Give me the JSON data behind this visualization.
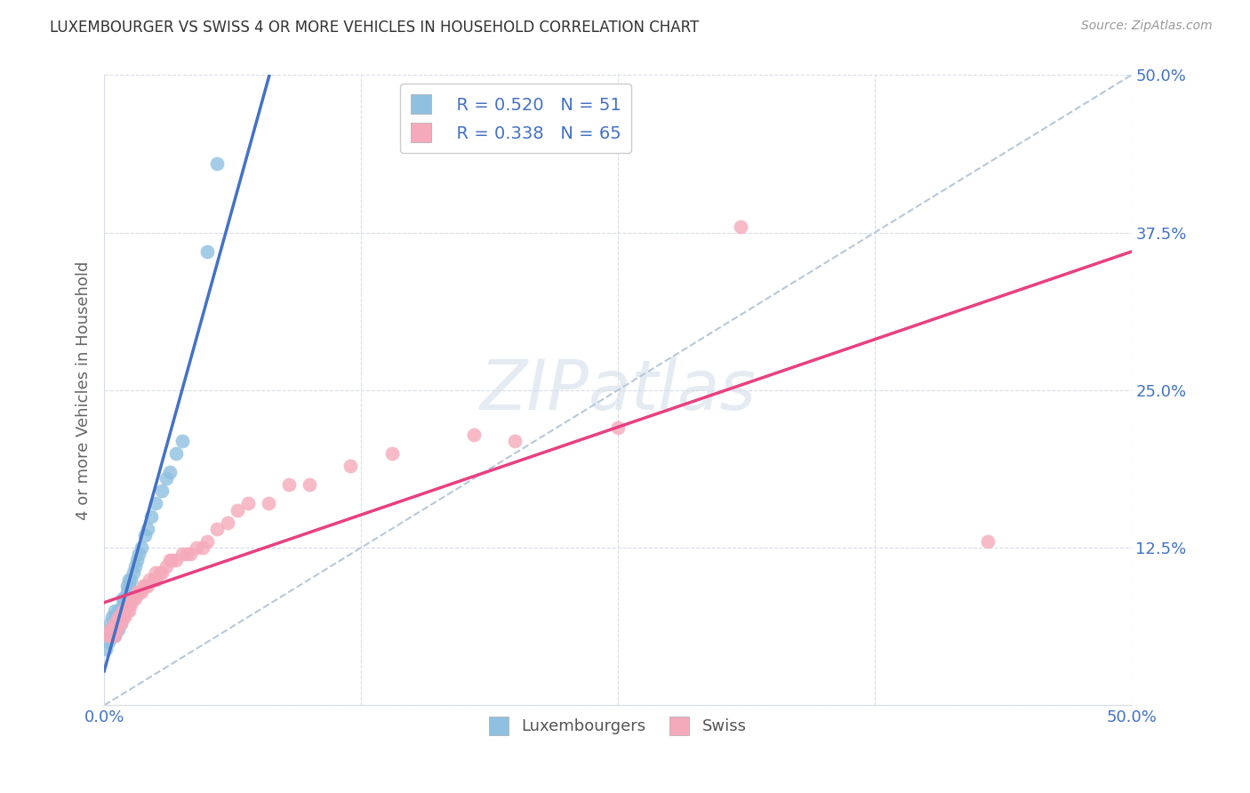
{
  "title": "LUXEMBOURGER VS SWISS 4 OR MORE VEHICLES IN HOUSEHOLD CORRELATION CHART",
  "source": "Source: ZipAtlas.com",
  "ylabel": "4 or more Vehicles in Household",
  "xlim": [
    0.0,
    0.5
  ],
  "ylim": [
    0.0,
    0.5
  ],
  "yticks": [
    0.0,
    0.125,
    0.25,
    0.375,
    0.5
  ],
  "ytick_labels": [
    "",
    "12.5%",
    "25.0%",
    "37.5%",
    "50.0%"
  ],
  "xticks": [
    0.0,
    0.125,
    0.25,
    0.375,
    0.5
  ],
  "xtick_labels": [
    "0.0%",
    "",
    "",
    "",
    "50.0%"
  ],
  "legend_lux_r": "R = 0.520",
  "legend_lux_n": "N = 51",
  "legend_swiss_r": "R = 0.338",
  "legend_swiss_n": "N = 65",
  "lux_color": "#8FC0E0",
  "swiss_color": "#F5AABB",
  "lux_line_color": "#4472C4",
  "swiss_line_color": "#E84080",
  "diagonal_color": "#B8C8D8",
  "background": "#FFFFFF",
  "grid_color": "#D8DCE8",
  "lux_x": [
    0.001,
    0.002,
    0.003,
    0.003,
    0.004,
    0.004,
    0.004,
    0.005,
    0.005,
    0.005,
    0.005,
    0.005,
    0.006,
    0.006,
    0.006,
    0.006,
    0.007,
    0.007,
    0.007,
    0.007,
    0.007,
    0.008,
    0.008,
    0.008,
    0.008,
    0.009,
    0.009,
    0.009,
    0.01,
    0.01,
    0.011,
    0.011,
    0.012,
    0.012,
    0.013,
    0.014,
    0.015,
    0.016,
    0.017,
    0.018,
    0.02,
    0.021,
    0.023,
    0.025,
    0.028,
    0.03,
    0.032,
    0.035,
    0.038,
    0.05,
    0.055
  ],
  "lux_y": [
    0.045,
    0.05,
    0.06,
    0.065,
    0.055,
    0.06,
    0.07,
    0.055,
    0.06,
    0.065,
    0.07,
    0.075,
    0.06,
    0.065,
    0.065,
    0.07,
    0.06,
    0.065,
    0.065,
    0.07,
    0.075,
    0.065,
    0.07,
    0.07,
    0.075,
    0.075,
    0.08,
    0.085,
    0.08,
    0.085,
    0.09,
    0.095,
    0.095,
    0.1,
    0.1,
    0.105,
    0.11,
    0.115,
    0.12,
    0.125,
    0.135,
    0.14,
    0.15,
    0.16,
    0.17,
    0.18,
    0.185,
    0.2,
    0.21,
    0.36,
    0.43
  ],
  "swiss_x": [
    0.002,
    0.003,
    0.003,
    0.004,
    0.004,
    0.004,
    0.005,
    0.005,
    0.005,
    0.006,
    0.006,
    0.006,
    0.007,
    0.007,
    0.007,
    0.008,
    0.008,
    0.008,
    0.009,
    0.009,
    0.01,
    0.01,
    0.011,
    0.011,
    0.012,
    0.012,
    0.013,
    0.014,
    0.015,
    0.016,
    0.017,
    0.018,
    0.019,
    0.02,
    0.021,
    0.022,
    0.024,
    0.025,
    0.025,
    0.027,
    0.028,
    0.03,
    0.032,
    0.033,
    0.035,
    0.038,
    0.04,
    0.042,
    0.045,
    0.048,
    0.05,
    0.055,
    0.06,
    0.065,
    0.07,
    0.08,
    0.09,
    0.1,
    0.12,
    0.14,
    0.18,
    0.2,
    0.25,
    0.31,
    0.43
  ],
  "swiss_y": [
    0.055,
    0.055,
    0.06,
    0.055,
    0.06,
    0.06,
    0.055,
    0.06,
    0.065,
    0.06,
    0.06,
    0.065,
    0.065,
    0.065,
    0.07,
    0.065,
    0.07,
    0.07,
    0.07,
    0.075,
    0.07,
    0.075,
    0.075,
    0.08,
    0.075,
    0.08,
    0.08,
    0.085,
    0.085,
    0.09,
    0.09,
    0.09,
    0.095,
    0.095,
    0.095,
    0.1,
    0.1,
    0.1,
    0.105,
    0.105,
    0.105,
    0.11,
    0.115,
    0.115,
    0.115,
    0.12,
    0.12,
    0.12,
    0.125,
    0.125,
    0.13,
    0.14,
    0.145,
    0.155,
    0.16,
    0.16,
    0.175,
    0.175,
    0.19,
    0.2,
    0.215,
    0.21,
    0.22,
    0.38,
    0.13
  ]
}
